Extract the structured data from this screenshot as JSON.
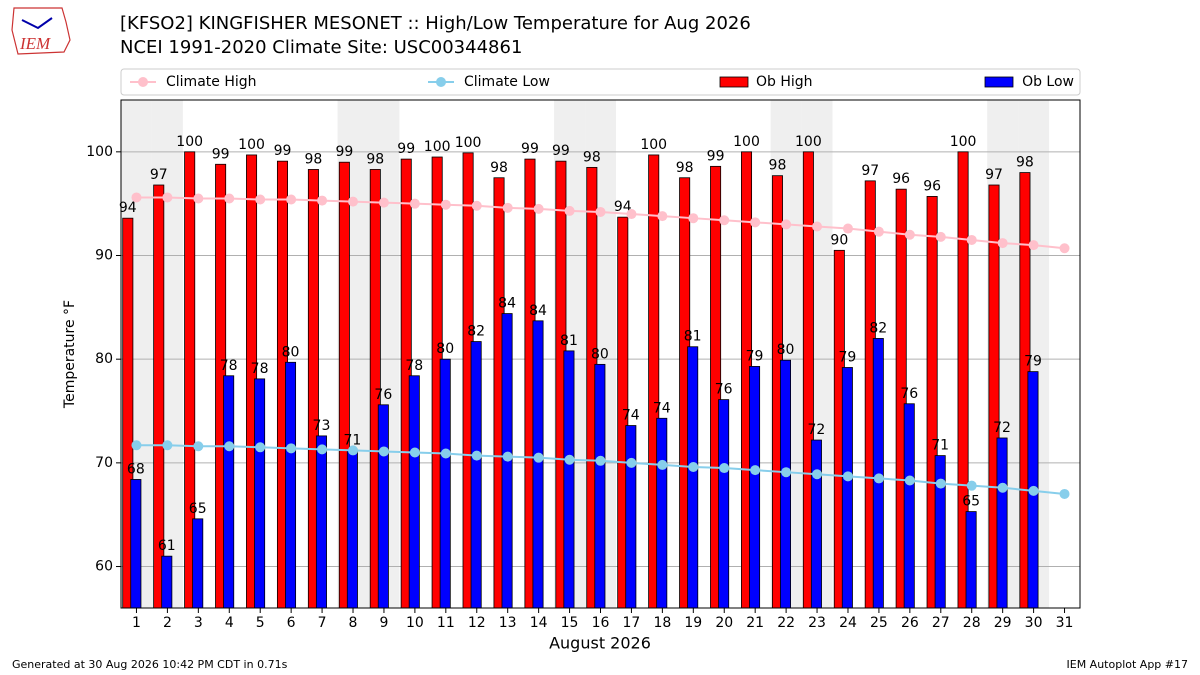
{
  "chart_data": {
    "type": "bar",
    "logo_text": "IEM",
    "title": "[KFSO2] KINGFISHER MESONET :: High/Low Temperature for Aug 2026",
    "subtitle": "NCEI 1991-2020 Climate Site: USC00344861",
    "xlabel": "August 2026",
    "ylabel": "Temperature °F",
    "footer_left": "Generated at 30 Aug 2026 10:42 PM CDT in 0.71s",
    "footer_right": "IEM Autoplot App #17",
    "x": [
      1,
      2,
      3,
      4,
      5,
      6,
      7,
      8,
      9,
      10,
      11,
      12,
      13,
      14,
      15,
      16,
      17,
      18,
      19,
      20,
      21,
      22,
      23,
      24,
      25,
      26,
      27,
      28,
      29,
      30,
      31
    ],
    "xlim": [
      0.5,
      31.5
    ],
    "xticks": [
      1,
      2,
      3,
      4,
      5,
      6,
      7,
      8,
      9,
      10,
      11,
      12,
      13,
      14,
      15,
      16,
      17,
      18,
      19,
      20,
      21,
      22,
      23,
      24,
      25,
      26,
      27,
      28,
      29,
      30,
      31
    ],
    "ylim": [
      56,
      105
    ],
    "yticks": [
      60,
      70,
      80,
      90,
      100
    ],
    "grid": true,
    "shaded_x": [
      1,
      2,
      8,
      9,
      15,
      16,
      22,
      23,
      29,
      30
    ],
    "legend": "top",
    "series": [
      {
        "name": "Climate High",
        "type": "line",
        "color": "#ffc0cb",
        "values": [
          95.6,
          95.6,
          95.5,
          95.5,
          95.4,
          95.4,
          95.3,
          95.2,
          95.1,
          95.0,
          94.9,
          94.8,
          94.6,
          94.5,
          94.3,
          94.2,
          94.0,
          93.8,
          93.6,
          93.4,
          93.2,
          93.0,
          92.8,
          92.6,
          92.3,
          92.0,
          91.8,
          91.5,
          91.2,
          91.0,
          90.7
        ]
      },
      {
        "name": "Climate Low",
        "type": "line",
        "color": "#87ceeb",
        "values": [
          71.7,
          71.7,
          71.6,
          71.6,
          71.5,
          71.4,
          71.3,
          71.2,
          71.1,
          71.0,
          70.9,
          70.7,
          70.6,
          70.5,
          70.3,
          70.2,
          70.0,
          69.8,
          69.6,
          69.5,
          69.3,
          69.1,
          68.9,
          68.7,
          68.5,
          68.3,
          68.0,
          67.8,
          67.6,
          67.3,
          67.0
        ]
      },
      {
        "name": "Ob High",
        "type": "bar",
        "color": "#ff0000",
        "values": [
          93.6,
          96.8,
          100,
          98.8,
          99.7,
          99.1,
          98.3,
          99.0,
          98.3,
          99.3,
          99.5,
          99.9,
          97.5,
          99.3,
          99.1,
          98.5,
          93.7,
          99.7,
          97.5,
          98.6,
          100,
          97.7,
          100,
          90.5,
          97.2,
          96.4,
          95.7,
          100,
          96.8,
          98.0,
          null
        ],
        "value_labels": [
          "94",
          "97",
          "100",
          "99",
          "100",
          "99",
          "98",
          "99",
          "98",
          "99",
          "100",
          "100",
          "98",
          "99",
          "99",
          "98",
          "94",
          "100",
          "98",
          "99",
          "100",
          "98",
          "100",
          "90",
          "97",
          "96",
          "96",
          "100",
          "97",
          "98",
          null
        ]
      },
      {
        "name": "Ob Low",
        "type": "bar",
        "color": "#0000ff",
        "values": [
          68.4,
          61.0,
          64.6,
          78.4,
          78.1,
          79.7,
          72.6,
          71.2,
          75.6,
          78.4,
          80.0,
          81.7,
          84.4,
          83.7,
          80.8,
          79.5,
          73.6,
          74.3,
          81.2,
          76.1,
          79.3,
          79.9,
          72.2,
          79.2,
          82.0,
          75.7,
          70.7,
          65.3,
          72.4,
          78.8,
          null
        ],
        "value_labels": [
          "68",
          "61",
          "65",
          "78",
          "78",
          "80",
          "73",
          "71",
          "76",
          "78",
          "80",
          "82",
          "84",
          "84",
          "81",
          "80",
          "74",
          "74",
          "81",
          "76",
          "79",
          "80",
          "72",
          "79",
          "82",
          "76",
          "71",
          "65",
          "72",
          "79",
          null
        ]
      }
    ]
  }
}
